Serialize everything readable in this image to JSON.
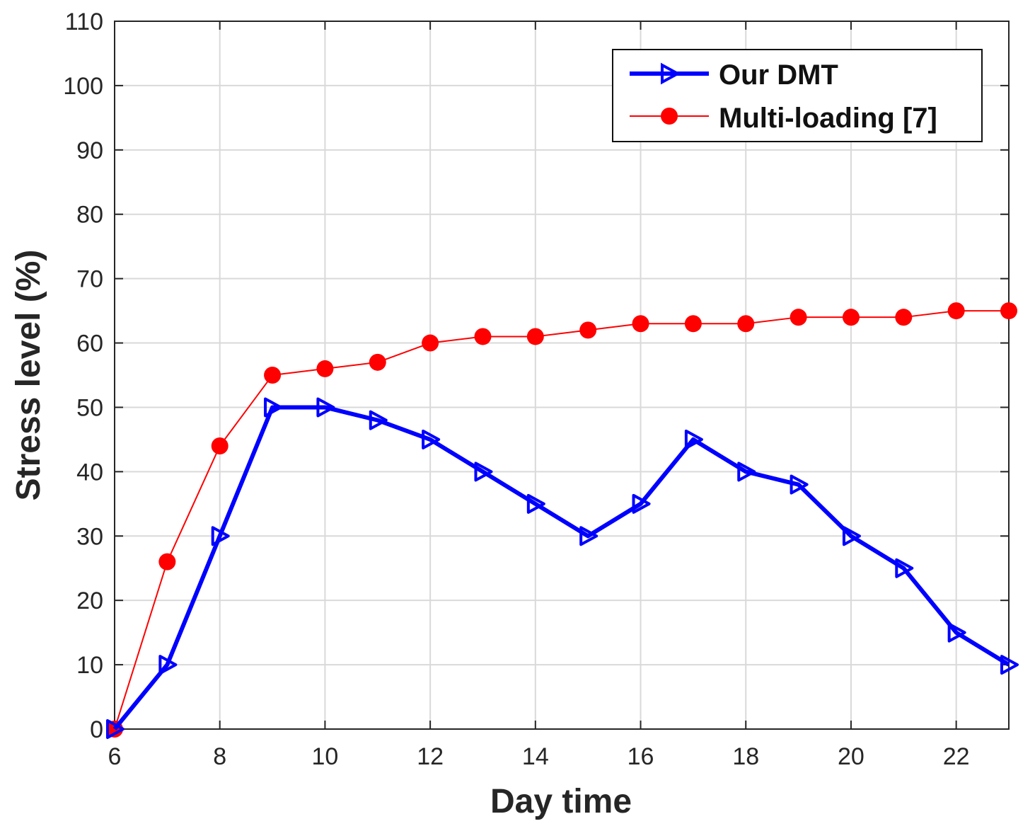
{
  "chart_data": {
    "type": "line",
    "title": "",
    "xlabel": "Day time",
    "ylabel": "Stress level (%)",
    "xlim": [
      6,
      23
    ],
    "ylim": [
      0,
      110
    ],
    "xticks": [
      6,
      8,
      10,
      12,
      14,
      16,
      18,
      20,
      22
    ],
    "yticks": [
      0,
      10,
      20,
      30,
      40,
      50,
      60,
      70,
      80,
      90,
      100,
      110
    ],
    "grid": true,
    "legend_position": "top-right",
    "x": [
      6,
      7,
      8,
      9,
      10,
      11,
      12,
      13,
      14,
      15,
      16,
      17,
      18,
      19,
      20,
      21,
      22,
      23
    ],
    "series": [
      {
        "name": "Our DMT",
        "color": "#0000ff",
        "marker": "triangle-right",
        "values": [
          0,
          10,
          30,
          50,
          50,
          48,
          45,
          40,
          35,
          30,
          35,
          45,
          40,
          38,
          30,
          25,
          15,
          10
        ]
      },
      {
        "name": "Multi-loading [7]",
        "color": "#ff0000",
        "marker": "circle",
        "values": [
          0,
          26,
          44,
          55,
          56,
          57,
          60,
          61,
          61,
          62,
          63,
          63,
          63,
          64,
          64,
          64,
          65,
          65
        ]
      }
    ]
  }
}
